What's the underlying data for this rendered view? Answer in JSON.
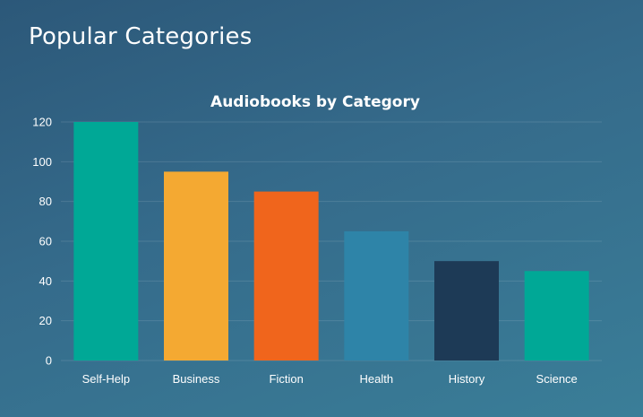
{
  "page": {
    "title": "Popular Categories"
  },
  "chart_data": {
    "type": "bar",
    "title": "Audiobooks by Category",
    "xlabel": "",
    "ylabel": "",
    "categories": [
      "Self-Help",
      "Business",
      "Fiction",
      "Health",
      "History",
      "Science"
    ],
    "values": [
      120,
      95,
      85,
      65,
      50,
      45
    ],
    "colors": [
      "#00a896",
      "#f4a932",
      "#f0651c",
      "#2e84a8",
      "#1d3a56",
      "#00a896"
    ],
    "ylim": [
      0,
      120
    ],
    "yticks": [
      0,
      20,
      40,
      60,
      80,
      100,
      120
    ],
    "grid": true,
    "legend": "none"
  }
}
